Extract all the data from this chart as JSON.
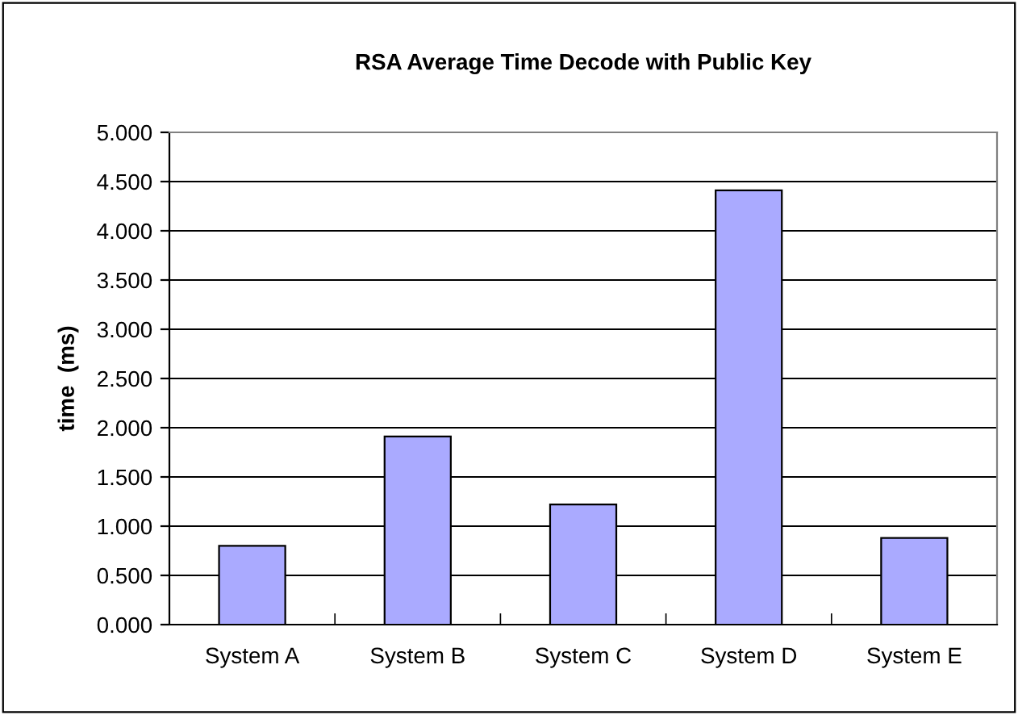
{
  "chart_data": {
    "type": "bar",
    "title": "RSA Average Time Decode with Public Key",
    "ylabel": "time  (ms)",
    "categories": [
      "System A",
      "System B",
      "System C",
      "System D",
      "System E"
    ],
    "values": [
      0.8,
      1.91,
      1.22,
      4.41,
      0.88
    ],
    "color": "#aaaaff",
    "ylim": [
      0,
      5
    ],
    "yticks": [
      {
        "value": 0,
        "label": "0.000"
      },
      {
        "value": 0.5,
        "label": "0.500"
      },
      {
        "value": 1,
        "label": "1.000"
      },
      {
        "value": 1.5,
        "label": "1.500"
      },
      {
        "value": 2,
        "label": "2.000"
      },
      {
        "value": 2.5,
        "label": "2.500"
      },
      {
        "value": 3,
        "label": "3.000"
      },
      {
        "value": 3.5,
        "label": "3.500"
      },
      {
        "value": 4,
        "label": "4.000"
      },
      {
        "value": 4.5,
        "label": "4.500"
      },
      {
        "value": 5,
        "label": "5.000"
      }
    ],
    "grid": "y",
    "legend": false
  }
}
